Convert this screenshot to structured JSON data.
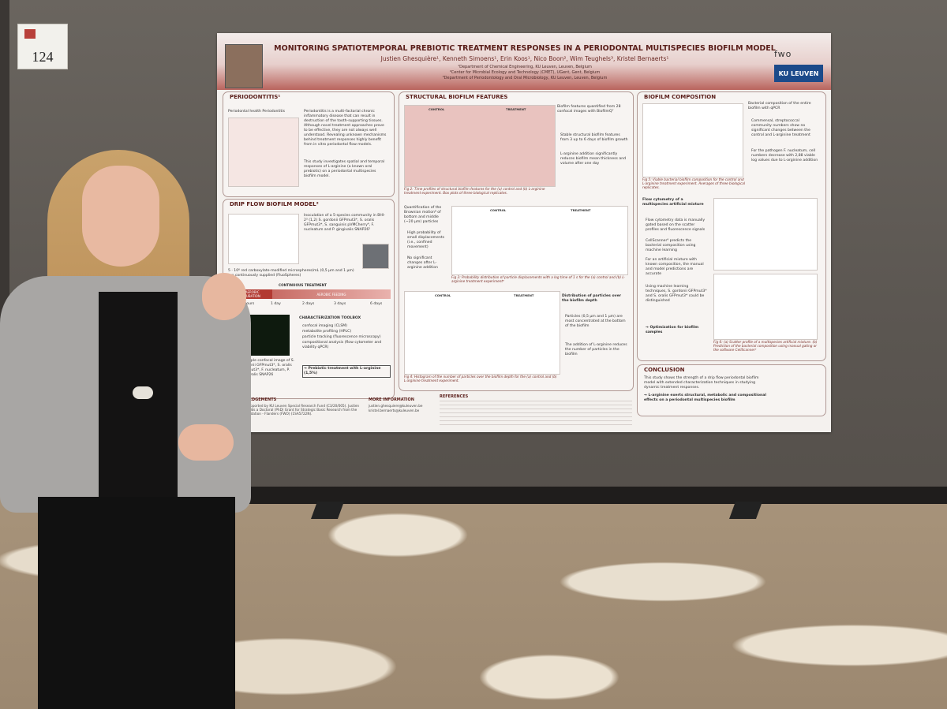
{
  "booth_number": "124",
  "poster": {
    "title": "MONITORING SPATIOTEMPORAL PREBIOTIC TREATMENT RESPONSES IN A PERIODONTAL MULTISPECIES BIOFILM MODEL",
    "authors": "Justien Ghesquière¹, Kenneth Simoens¹, Erin Koos¹, Nico Boon², Wim Teughels³, Kristel Bernaerts¹",
    "affiliations": [
      "¹Department of Chemical Engineering, KU Leuven, Leuven, Belgium",
      "²Center for Microbial Ecology and Technology (CMET), UGent, Gent, Belgium",
      "³Department of Periodontology and Oral Microbiology, KU Leuven, Leuven, Belgium"
    ],
    "logos": {
      "fwo": "fwo",
      "kuleuven": "KU LEUVEN"
    },
    "periodontitis": {
      "heading": "PERIODONTITIS¹",
      "labels": "Periodontal health    Periodontitis",
      "text": "Periodontitis is a multi-factorial chronic inflammatory disease that can result in destruction of the tooth-supporting tissues. Although novel treatment approaches prove to be effective, they are not always well understood. Revealing unknown mechanisms behind treatment responses highly benefit from in vitro periodontal flow models.",
      "study": "This study investigates spatial and temporal responses of L-arginine (a known oral prebiotic) on a periodontal multispecies biofilm model."
    },
    "drip_flow": {
      "heading": "DRIP FLOW BIOFILM MODEL²",
      "text": "Inoculation of a 5-species community in BHI-2³ (1,2) S. gordonii GFPmut3*, S. oralis GFPmut3*, S. sanguinis pVMCherry⁴, F. nucleatum and P. gingivalis SNAP26⁵",
      "beads": "5 · 10⁶ red carboxylate-modified microspheres/mL (0,5 µm and 1 µm) are continuously supplied (FluoSpheres)",
      "continuous": "CONTINUOUS TREATMENT",
      "anaerobic": "ANAEROBIC INCUBATION",
      "aerobic": "AEROBIC FEEDING",
      "timeline": [
        "0 hours",
        "1 day",
        "2 days",
        "3 days",
        "6 days"
      ],
      "toolbox_heading": "CHARACTERIZATION TOOLBOX",
      "toolbox": [
        "confocal imaging (CLSM)",
        "metabolite profiling (HPLC)",
        "particle tracking (fluorescence microscopy)",
        "compositional analysis (flow cytometer and viability qPCR)"
      ],
      "confocal_caption": "Example confocal image of S. gordonii GFPmut3*, S. oralis GFPmut3*, F. nucleatum, P. gingivalis SNAP26",
      "treatment": "→ Prebiotic treatment with L-arginine (1,5%)"
    },
    "structural": {
      "heading": "STRUCTURAL BIOFILM FEATURES",
      "control": "CONTROL",
      "treatment": "TREATMENT",
      "text1": "Biofilm features quantified from 28 confocal images with BiofilmQ⁷",
      "bullets1": [
        "Stable structural biofilm features from 3 up to 6 days of biofilm growth",
        "L-arginine addition significantly reduces biofilm mean thickness and volume after one day"
      ],
      "fig2": "Fig 2: Time profiles of structural biofilm features for the (a) control and (b) L-arginine treatment experiment. Box plots of three biological replicates.",
      "text2": "Quantification of the Brownian motion⁸ of bottom and middle (~20 µm) particles",
      "bullets2": [
        "High probability of small displacements (i.e., confined movement)",
        "No significant changes after L-arginine addition"
      ],
      "fig3": "Fig 3: Probability distribution of particle displacements with a log time of 1 s for the (a) control and (b) L-arginine treatment experiment⁸",
      "text3": "Distribution of particles over the biofilm depth",
      "bullets3": [
        "Particles (0,5 µm and 1 µm) are most concentrated at the bottom of the biofilm",
        "The addition of L-arginine reduces the number of particles in the biofilm"
      ],
      "fig4": "Fig 4: Histogram of the number of particles over the biofilm depth for the (a) control and (b) L-arginine treatment experiment."
    },
    "composition": {
      "heading": "BIOFILM COMPOSITION",
      "text1": "Bacterial composition of the entire biofilm with qPCR",
      "bullets1": [
        "Commensal, streptococcal community numbers show no significant changes between the control and L-arginine treatment",
        "For the pathogen F. nucleatum, cell numbers decrease with 2,88 viable log values due to L-arginine addition"
      ],
      "fig5": "Fig 5: Viable bacterial biofilm composition for the control and L-arginine treatment experiment. Averages of three biological replicates.",
      "flow_heading": "Flow cytometry of a multispecies artificial mixture",
      "bullets2": [
        "Flow cytometry data is manually gated based on the scatter profiles and fluorescence signals",
        "CellScanner⁹ predicts the bacterial composition using machine learning",
        "For an artificial mixture with known composition, the manual and model predictions are accurate",
        "Using machine learning techniques, S. gordonii GFPmut3* and S. oralis GFPmut3* could be distinguished"
      ],
      "optimization": "→ Optimization for biofilm samples",
      "fig6": "Fig 6: (a) Scatter profile of a multispecies artificial mixture. (b) Prediction of the bacterial composition using manual gating or the software CellScanner⁹"
    },
    "conclusion": {
      "heading": "CONCLUSION",
      "text": "This study shows the strength of a drip flow periodontal biofilm model with extended characterization techniques in studying dynamic treatment responses.",
      "point": "→ L-arginine exerts structural, metabolic and compositional effects on a periodontal multispecies biofilm"
    },
    "acknowledgements": {
      "heading": "ACKNOWLEDGEMENTS",
      "text": "Research is supported by KU Leuven Special Research Fund (C3/20/005). Justien Ghesquière holds a Doctoral (PhD) Grant for Strategic Basic Research from the Research Foundation - Flanders (FWO) (1SA5722N)."
    },
    "more_info": {
      "heading": "MORE INFORMATION",
      "emails": [
        "justien.ghesquiere@kuleuven.be",
        "kristel.bernaerts@kuleuven.be"
      ]
    },
    "references": {
      "heading": "REFERENCES"
    }
  }
}
